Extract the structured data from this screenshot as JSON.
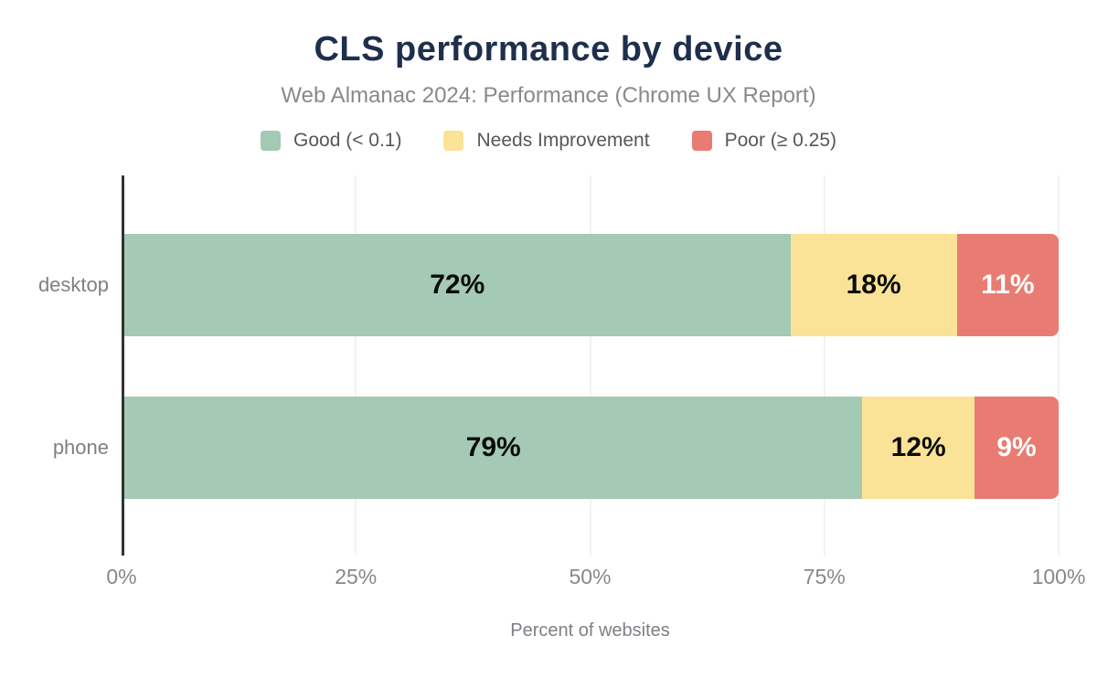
{
  "header": {
    "title": "CLS performance by device",
    "subtitle": "Web Almanac 2024: Performance (Chrome UX Report)"
  },
  "legend": {
    "items": [
      {
        "label": "Good (< 0.1)",
        "color": "#a4c9b4"
      },
      {
        "label": "Needs Improvement",
        "color": "#fae396"
      },
      {
        "label": "Poor (≥ 0.25)",
        "color": "#e87c72"
      }
    ]
  },
  "chart_data": {
    "type": "bar",
    "orientation": "horizontal",
    "stacked": true,
    "title": "CLS performance by device",
    "subtitle": "Web Almanac 2024: Performance (Chrome UX Report)",
    "categories": [
      "desktop",
      "phone"
    ],
    "series": [
      {
        "name": "Good (< 0.1)",
        "color": "#a4c9b4",
        "label_color": "#0b0b0b",
        "values": [
          72,
          79
        ]
      },
      {
        "name": "Needs Improvement",
        "color": "#fae396",
        "label_color": "#0b0b0b",
        "values": [
          18,
          12
        ]
      },
      {
        "name": "Poor (≥ 0.25)",
        "color": "#e87c72",
        "label_color": "#ffffff",
        "values": [
          11,
          9
        ]
      }
    ],
    "data_labels": [
      [
        "72%",
        "18%",
        "11%"
      ],
      [
        "79%",
        "12%",
        "9%"
      ]
    ],
    "xlabel": "Percent of websites",
    "x_ticks": [
      "0%",
      "25%",
      "50%",
      "75%",
      "100%"
    ],
    "xlim": [
      0,
      100
    ],
    "grid": "vertical",
    "legend_position": "top"
  },
  "style": {
    "title_color": "#1e2f4d",
    "subtitle_color": "#868a8d",
    "axis_text_color": "#85888b",
    "legend_text_color": "#55575a",
    "gridline_color": "#f2f2f2",
    "axis_line_color": "#333333",
    "background": "#ffffff"
  }
}
